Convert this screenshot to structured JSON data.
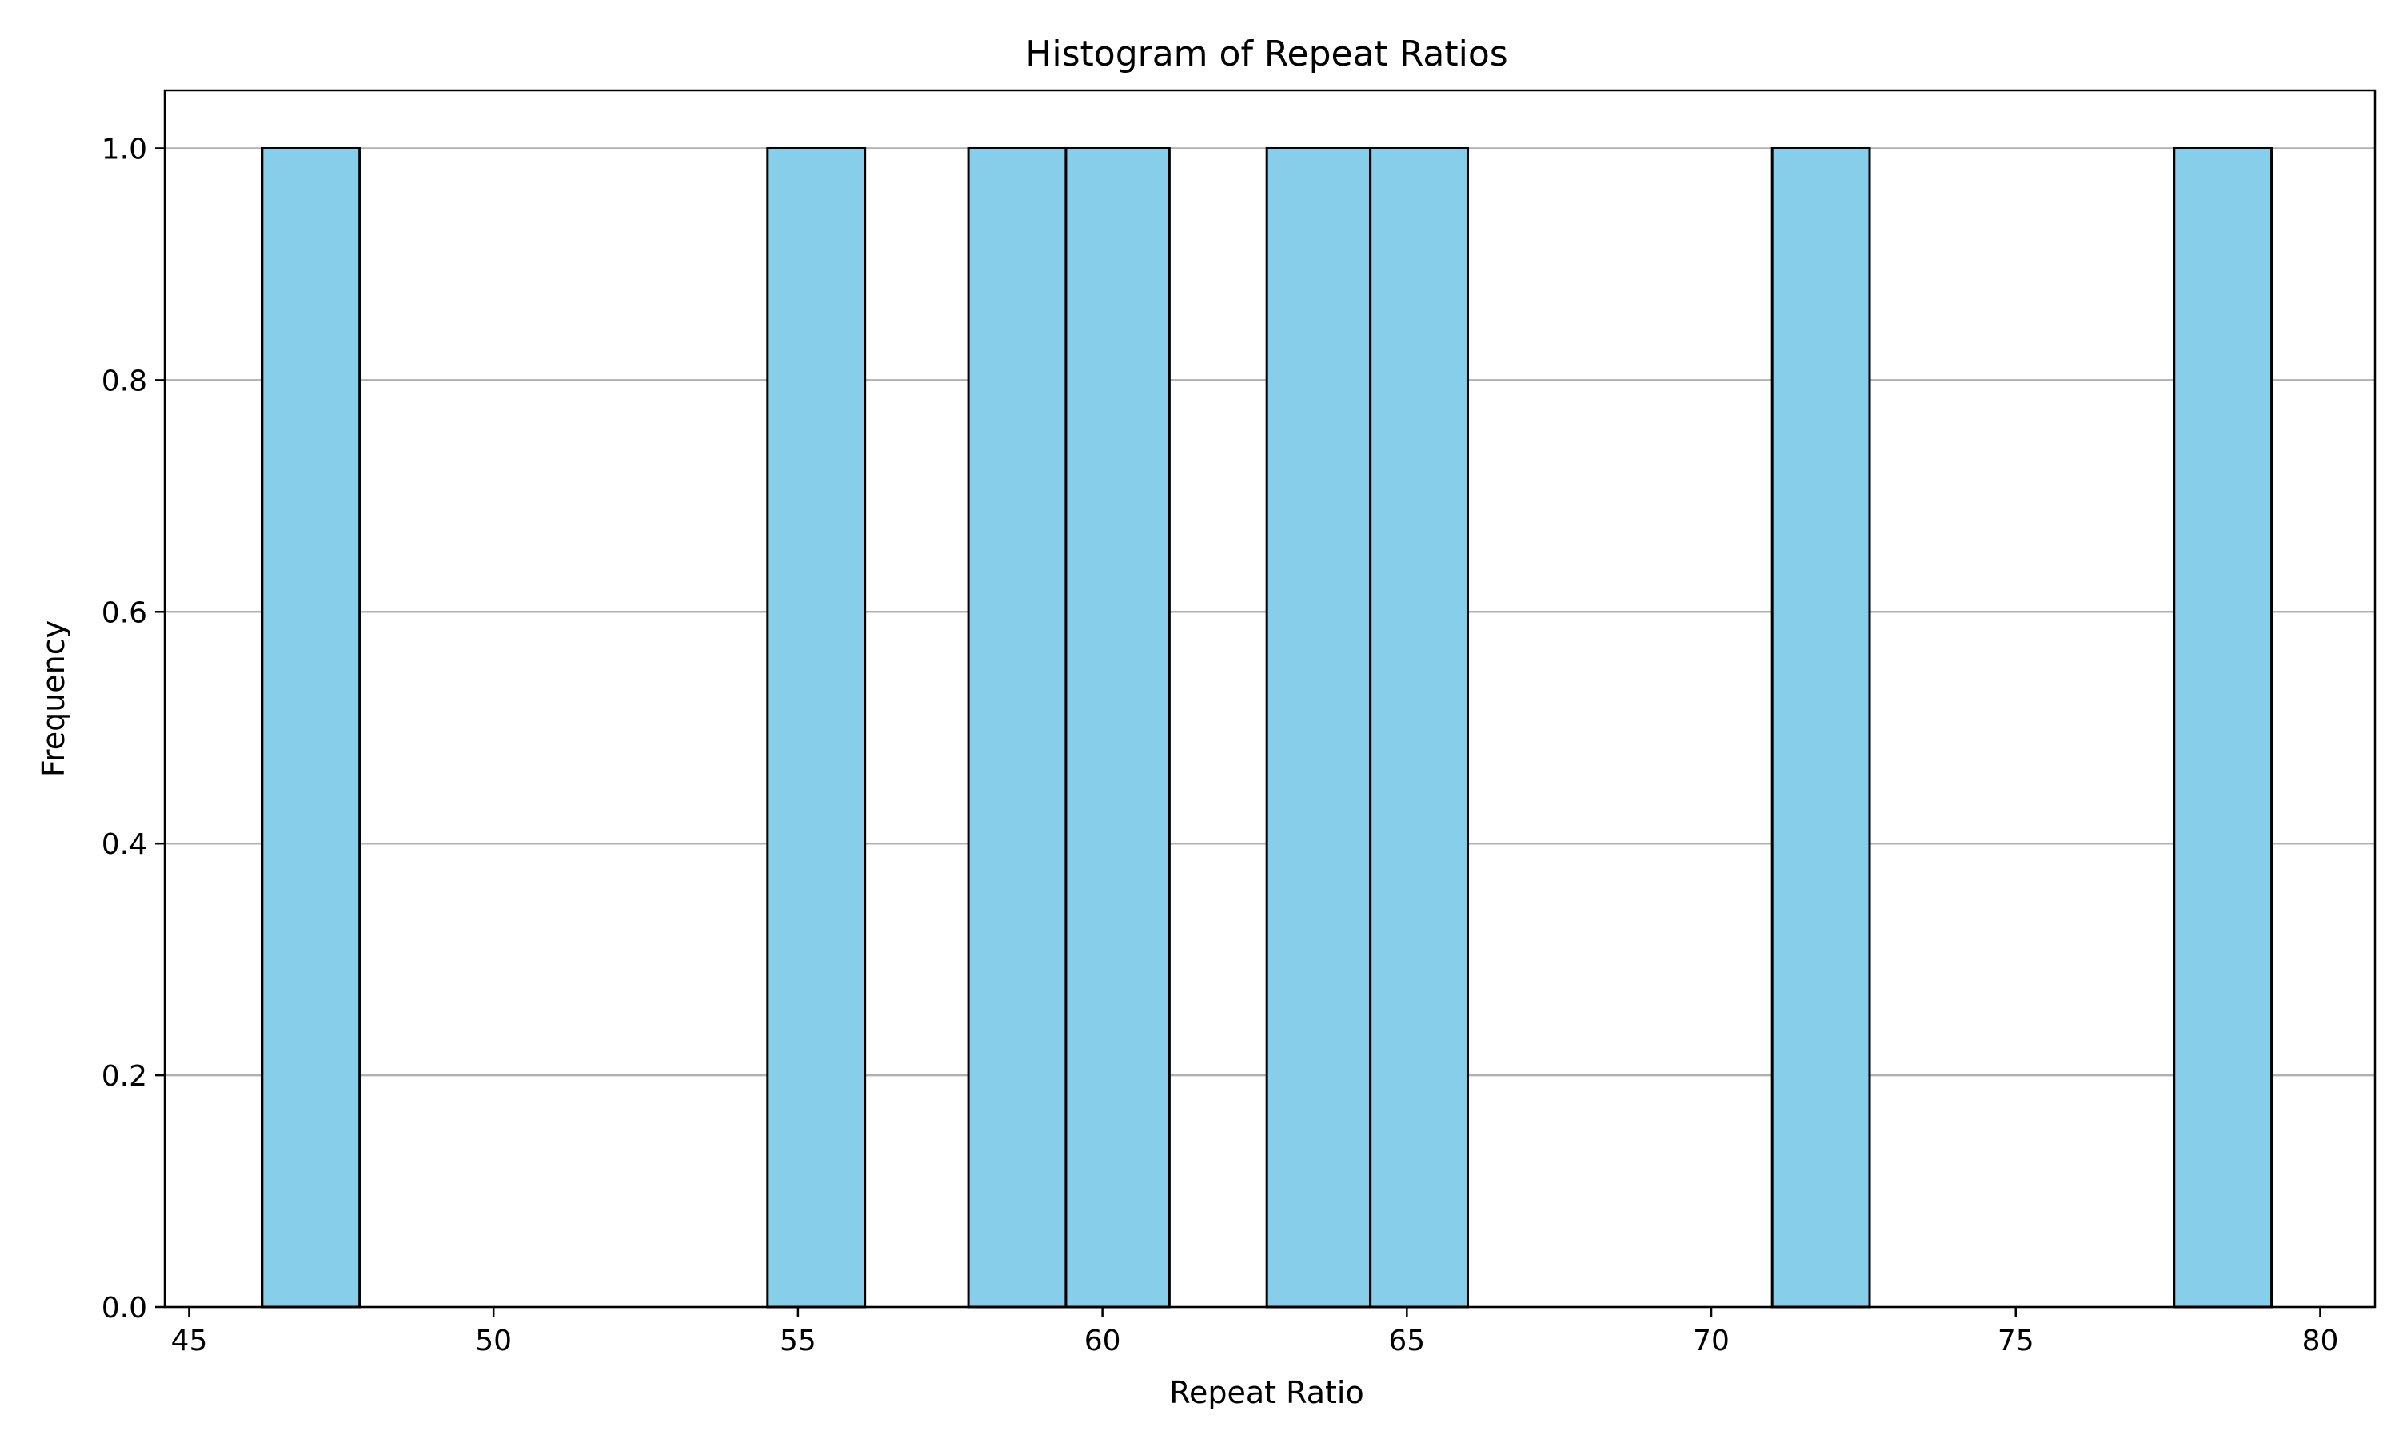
{
  "chart_data": {
    "type": "bar",
    "subtype": "histogram",
    "title": "Histogram of Repeat Ratios",
    "xlabel": "Repeat Ratio",
    "ylabel": "Frequency",
    "xlim": [
      44.6,
      80.9
    ],
    "ylim": [
      0,
      1.05
    ],
    "xticks": [
      45,
      50,
      55,
      60,
      65,
      70,
      75,
      80
    ],
    "xtick_labels": [
      "45",
      "50",
      "55",
      "60",
      "65",
      "70",
      "75",
      "80"
    ],
    "yticks": [
      0,
      0.2,
      0.4,
      0.6,
      0.8,
      1.0
    ],
    "ytick_labels": [
      "0.0",
      "0.2",
      "0.4",
      "0.6",
      "0.8",
      "1.0"
    ],
    "grid": "y-major",
    "bar_color": "#87CEEB",
    "edge_color": "#000000",
    "bins": [
      {
        "x0": 46.2,
        "x1": 47.8,
        "count": 1
      },
      {
        "x0": 54.5,
        "x1": 56.1,
        "count": 1
      },
      {
        "x0": 57.8,
        "x1": 59.4,
        "count": 1
      },
      {
        "x0": 59.4,
        "x1": 61.1,
        "count": 1
      },
      {
        "x0": 62.7,
        "x1": 64.4,
        "count": 1
      },
      {
        "x0": 64.4,
        "x1": 66.0,
        "count": 1
      },
      {
        "x0": 71.0,
        "x1": 72.6,
        "count": 1
      },
      {
        "x0": 77.6,
        "x1": 79.2,
        "count": 1
      }
    ]
  }
}
